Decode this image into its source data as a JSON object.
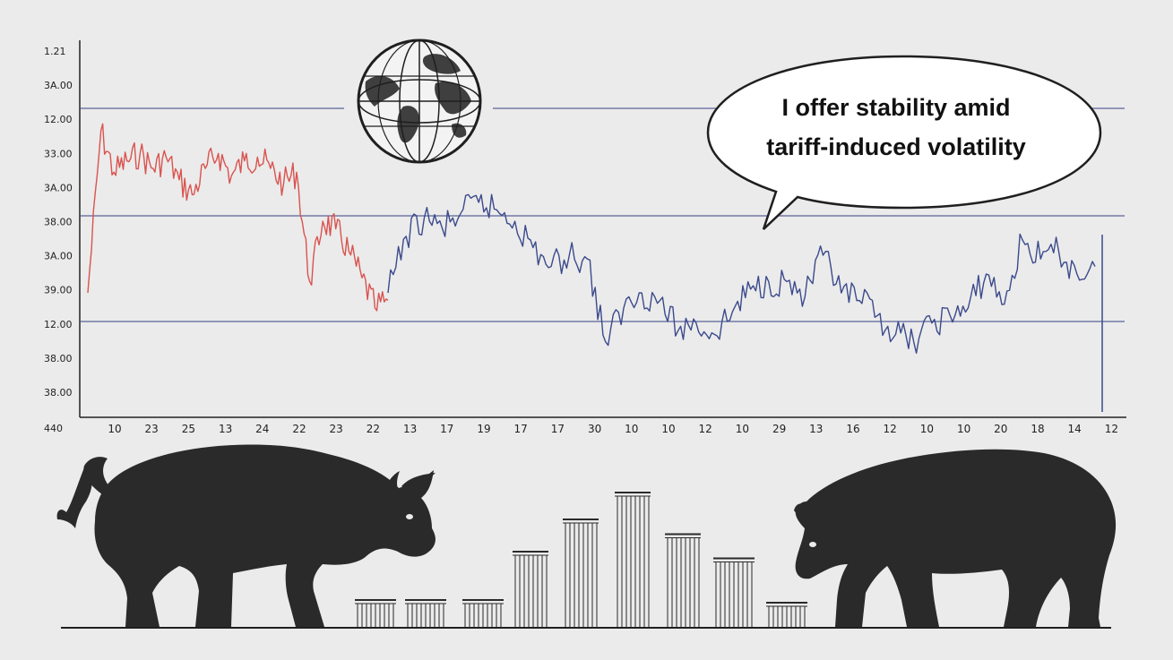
{
  "speech_bubble": {
    "line1": "I offer stability amid",
    "line2": "tariff-induced volatility"
  },
  "icons": [
    "globe-icon",
    "bull-icon",
    "bear-icon"
  ],
  "colors": {
    "background": "#ebebeb",
    "bearish_series": "#d9534f",
    "bullish_series": "#3b4a8c",
    "reference_lines": "#5a6499",
    "silhouettes": "#2a2a2a"
  },
  "chart_data": {
    "type": "line",
    "title": "",
    "xlabel": "",
    "ylabel": "",
    "y_tick_labels": [
      "1.21",
      "3A.00",
      "12.00",
      "33.00",
      "3A.00",
      "38.00",
      "3A.00",
      "39.00",
      "12.00",
      "38.00",
      "38.00"
    ],
    "y_origin_label": "440",
    "x_tick_labels": [
      "10",
      "23",
      "25",
      "13",
      "24",
      "22",
      "23",
      "22",
      "13",
      "17",
      "19",
      "17",
      "17",
      "30",
      "10",
      "10",
      "12",
      "10",
      "29",
      "13",
      "16",
      "12",
      "10",
      "10",
      "20",
      "18",
      "14",
      "12"
    ],
    "reference_lines": [
      "12.00",
      "38.00",
      "12.00"
    ],
    "grid": false,
    "legend": "none",
    "series": [
      {
        "color": "#d9534f",
        "values": [
          3.3,
          7.6,
          6.5,
          6.8,
          7.0,
          6.6,
          6.9,
          6.3,
          5.9,
          6.6,
          7.0,
          6.4,
          6.8,
          6.9,
          6.6,
          6.2,
          6.5,
          3.6,
          5.2,
          5.0,
          4.4,
          3.7,
          2.9,
          3.1
        ]
      },
      {
        "color": "#3b4a8c",
        "values": [
          3.3,
          4.8,
          5.3,
          5.0,
          5.4,
          5.7,
          5.5,
          5.2,
          4.5,
          4.0,
          4.3,
          4.2,
          2.0,
          2.9,
          3.3,
          3.1,
          2.3,
          2.5,
          2.2,
          2.8,
          3.4,
          3.6,
          3.6,
          3.2,
          4.3,
          3.3,
          3.1,
          2.7,
          2.2,
          2.0,
          2.5,
          2.7,
          2.9,
          3.8,
          3.0,
          4.7,
          4.2,
          4.4,
          3.8,
          4.0
        ]
      }
    ],
    "volume_bars": [
      2.0,
      2.0,
      2.0,
      5.6,
      8.0,
      10.0,
      6.9,
      5.1,
      1.8
    ]
  }
}
